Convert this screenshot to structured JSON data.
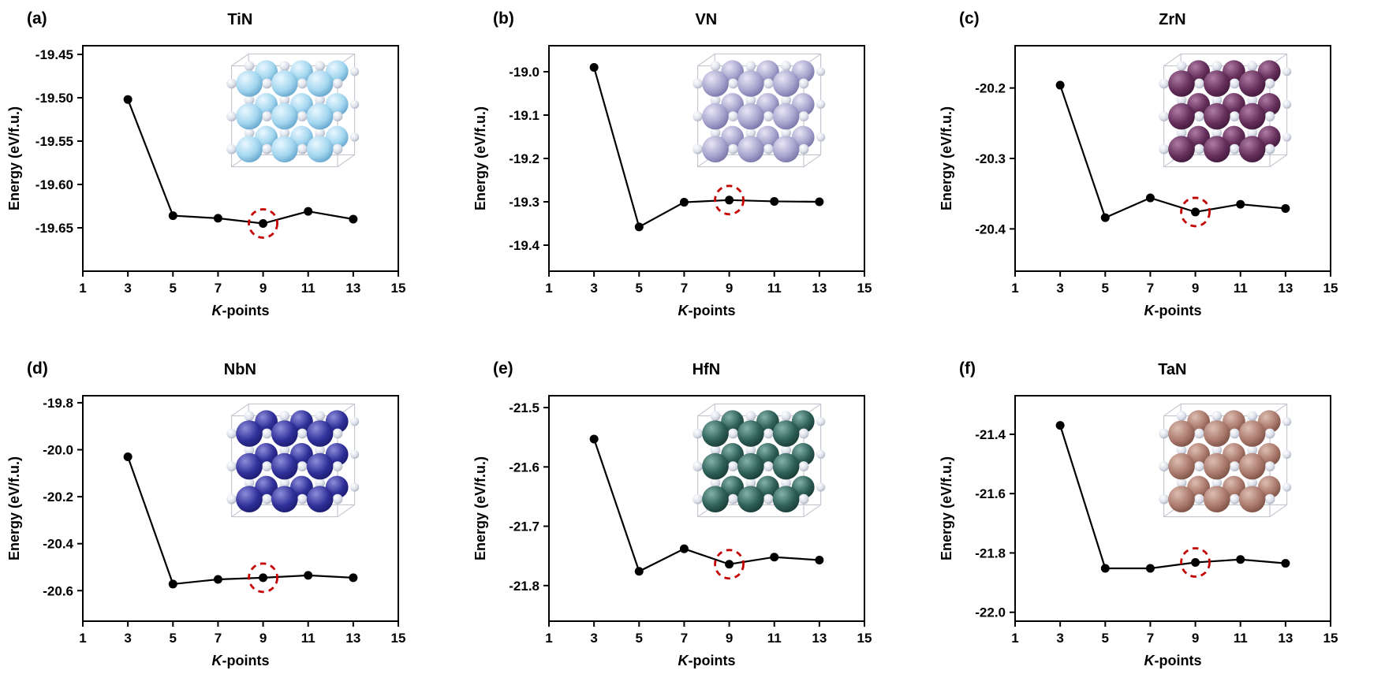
{
  "figure": {
    "background": "#ffffff",
    "line_color": "#000000",
    "highlight_color": "#c40000",
    "ylabel": "Energy (eV/f.u.)",
    "xlabel_italic": "K",
    "xlabel_rest": "-points",
    "highlighted_kpoint": 9
  },
  "chart_data": [
    {
      "type": "line",
      "panel_label": "(a)",
      "title": "TiN",
      "xlabel": "K-points",
      "ylabel": "Energy (eV/f.u.)",
      "x": [
        3,
        5,
        7,
        9,
        11,
        13
      ],
      "values": [
        -19.502,
        -19.636,
        -19.639,
        -19.645,
        -19.631,
        -19.64
      ],
      "xlim": [
        1,
        15
      ],
      "xticks": [
        1,
        3,
        5,
        7,
        9,
        11,
        13,
        15
      ],
      "ylim": [
        -19.7,
        -19.44
      ],
      "ytick_values": [
        -19.45,
        -19.5,
        -19.55,
        -19.6,
        -19.65
      ],
      "ytick_labels": [
        "-19.45",
        "-19.50",
        "-19.55",
        "-19.60",
        "-19.65"
      ],
      "highlight_x": 9,
      "inset": {
        "material": "TiN crystal structure",
        "metal": "#a3d6ef",
        "metal_light": "#eaf8ff",
        "metal_dark": "#4f94bf",
        "nitrogen": "#dce0ea",
        "nitrogen_light": "#ffffff",
        "nitrogen_dark": "#99a0af"
      }
    },
    {
      "type": "line",
      "panel_label": "(b)",
      "title": "VN",
      "xlabel": "K-points",
      "ylabel": "Energy (eV/f.u.)",
      "x": [
        3,
        5,
        7,
        9,
        11,
        13
      ],
      "values": [
        -18.99,
        -19.358,
        -19.301,
        -19.296,
        -19.299,
        -19.3
      ],
      "xlim": [
        1,
        15
      ],
      "xticks": [
        1,
        3,
        5,
        7,
        9,
        11,
        13,
        15
      ],
      "ylim": [
        -19.46,
        -18.94
      ],
      "ytick_values": [
        -19.0,
        -19.1,
        -19.2,
        -19.3,
        -19.4
      ],
      "ytick_labels": [
        "-19.0",
        "-19.1",
        "-19.2",
        "-19.3",
        "-19.4"
      ],
      "highlight_x": 9,
      "inset": {
        "material": "VN crystal structure",
        "metal": "#a8a4ce",
        "metal_light": "#e8e6f5",
        "metal_dark": "#67639a",
        "nitrogen": "#dce0ea",
        "nitrogen_light": "#ffffff",
        "nitrogen_dark": "#99a0af"
      }
    },
    {
      "type": "line",
      "panel_label": "(c)",
      "title": "ZrN",
      "xlabel": "K-points",
      "ylabel": "Energy (eV/f.u.)",
      "x": [
        3,
        5,
        7,
        9,
        11,
        13
      ],
      "values": [
        -20.196,
        -20.384,
        -20.356,
        -20.376,
        -20.365,
        -20.371
      ],
      "xlim": [
        1,
        15
      ],
      "xticks": [
        1,
        3,
        5,
        7,
        9,
        11,
        13,
        15
      ],
      "ylim": [
        -20.46,
        -20.14
      ],
      "ytick_values": [
        -20.2,
        -20.3,
        -20.4
      ],
      "ytick_labels": [
        "-20.2",
        "-20.3",
        "-20.4"
      ],
      "highlight_x": 9,
      "inset": {
        "material": "ZrN crystal structure",
        "metal": "#66305c",
        "metal_light": "#ad7ca4",
        "metal_dark": "#351230",
        "nitrogen": "#dce0ea",
        "nitrogen_light": "#ffffff",
        "nitrogen_dark": "#99a0af"
      }
    },
    {
      "type": "line",
      "panel_label": "(d)",
      "title": "NbN",
      "xlabel": "K-points",
      "ylabel": "Energy (eV/f.u.)",
      "x": [
        3,
        5,
        7,
        9,
        11,
        13
      ],
      "values": [
        -20.03,
        -20.572,
        -20.552,
        -20.545,
        -20.535,
        -20.545
      ],
      "xlim": [
        1,
        15
      ],
      "xticks": [
        1,
        3,
        5,
        7,
        9,
        11,
        13,
        15
      ],
      "ylim": [
        -20.73,
        -19.77
      ],
      "ytick_values": [
        -19.8,
        -20.0,
        -20.2,
        -20.4,
        -20.6
      ],
      "ytick_labels": [
        "-19.8",
        "-20.0",
        "-20.2",
        "-20.4",
        "-20.6"
      ],
      "highlight_x": 9,
      "inset": {
        "material": "NbN crystal structure",
        "metal": "#30309a",
        "metal_light": "#8d8dda",
        "metal_dark": "#141460",
        "nitrogen": "#dce0ea",
        "nitrogen_light": "#ffffff",
        "nitrogen_dark": "#99a0af"
      }
    },
    {
      "type": "line",
      "panel_label": "(e)",
      "title": "HfN",
      "xlabel": "K-points",
      "ylabel": "Energy (eV/f.u.)",
      "x": [
        3,
        5,
        7,
        9,
        11,
        13
      ],
      "values": [
        -21.553,
        -21.776,
        -21.738,
        -21.764,
        -21.752,
        -21.757
      ],
      "xlim": [
        1,
        15
      ],
      "xticks": [
        1,
        3,
        5,
        7,
        9,
        11,
        13,
        15
      ],
      "ylim": [
        -21.86,
        -21.48
      ],
      "ytick_values": [
        -21.5,
        -21.6,
        -21.7,
        -21.8
      ],
      "ytick_labels": [
        "-21.5",
        "-21.6",
        "-21.7",
        "-21.8"
      ],
      "highlight_x": 9,
      "inset": {
        "material": "HfN crystal structure",
        "metal": "#2f6058",
        "metal_light": "#82b2a8",
        "metal_dark": "#112f28",
        "nitrogen": "#dce0ea",
        "nitrogen_light": "#ffffff",
        "nitrogen_dark": "#99a0af"
      }
    },
    {
      "type": "line",
      "panel_label": "(f)",
      "title": "TaN",
      "xlabel": "K-points",
      "ylabel": "Energy (eV/f.u.)",
      "x": [
        3,
        5,
        7,
        9,
        11,
        13
      ],
      "values": [
        -21.37,
        -21.852,
        -21.852,
        -21.832,
        -21.822,
        -21.835
      ],
      "xlim": [
        1,
        15
      ],
      "xticks": [
        1,
        3,
        5,
        7,
        9,
        11,
        13,
        15
      ],
      "ylim": [
        -22.03,
        -21.27
      ],
      "ytick_values": [
        -21.4,
        -21.6,
        -21.8,
        -22.0
      ],
      "ytick_labels": [
        "-21.4",
        "-21.6",
        "-21.8",
        "-22.0"
      ],
      "highlight_x": 9,
      "inset": {
        "material": "TaN crystal structure",
        "metal": "#aa7a6d",
        "metal_light": "#ddbdb1",
        "metal_dark": "#6d4338",
        "nitrogen": "#dce0ea",
        "nitrogen_light": "#ffffff",
        "nitrogen_dark": "#99a0af"
      }
    }
  ]
}
